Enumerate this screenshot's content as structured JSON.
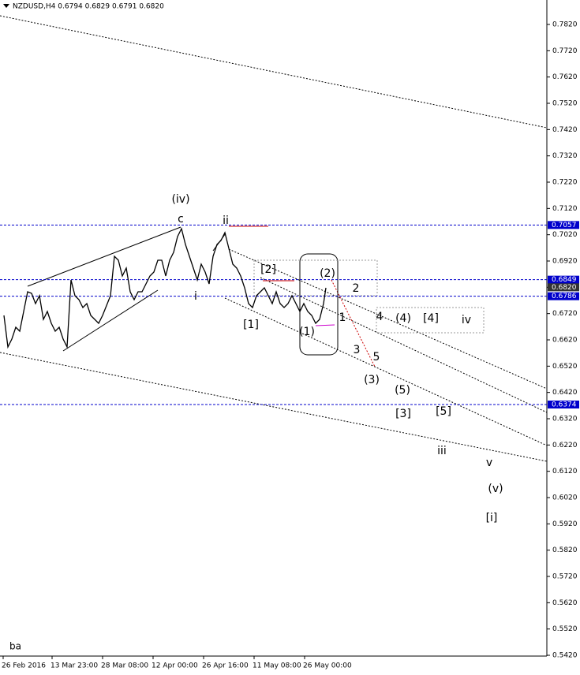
{
  "chart_data": {
    "type": "line",
    "title": "NZDUSD,H4 0.6794 0.6829 0.6791 0.6820",
    "footer": "ba",
    "xlim": [
      0,
      693
    ],
    "ylim": [
      0.5417,
      0.7913
    ],
    "xticks": [
      {
        "value": 4,
        "label": "26 Feb 2016"
      },
      {
        "value": 66,
        "label": "13 Mar 23:00"
      },
      {
        "value": 130,
        "label": "28 Mar 08:00"
      },
      {
        "value": 194,
        "label": "12 Apr 00:00"
      },
      {
        "value": 258,
        "label": "26 Apr 16:00"
      },
      {
        "value": 322,
        "label": "11 May 08:00"
      },
      {
        "value": 386,
        "label": "26 May 00:00"
      }
    ],
    "yticks": [
      {
        "value": 0.782,
        "label": "0.7820"
      },
      {
        "value": 0.772,
        "label": "0.7720"
      },
      {
        "value": 0.762,
        "label": "0.7620"
      },
      {
        "value": 0.752,
        "label": "0.7520"
      },
      {
        "value": 0.742,
        "label": "0.7420"
      },
      {
        "value": 0.732,
        "label": "0.7320"
      },
      {
        "value": 0.722,
        "label": "0.7220"
      },
      {
        "value": 0.712,
        "label": "0.7120"
      },
      {
        "value": 0.702,
        "label": "0.7020"
      },
      {
        "value": 0.692,
        "label": "0.6920"
      },
      {
        "value": 0.682,
        "label": "0.6820"
      },
      {
        "value": 0.672,
        "label": "0.6720"
      },
      {
        "value": 0.662,
        "label": "0.6620"
      },
      {
        "value": 0.652,
        "label": "0.6520"
      },
      {
        "value": 0.642,
        "label": "0.6420"
      },
      {
        "value": 0.632,
        "label": "0.6320"
      },
      {
        "value": 0.622,
        "label": "0.6220"
      },
      {
        "value": 0.612,
        "label": "0.6120"
      },
      {
        "value": 0.602,
        "label": "0.6020"
      },
      {
        "value": 0.592,
        "label": "0.5920"
      },
      {
        "value": 0.582,
        "label": "0.5820"
      },
      {
        "value": 0.572,
        "label": "0.5720"
      },
      {
        "value": 0.562,
        "label": "0.5620"
      },
      {
        "value": 0.552,
        "label": "0.5520"
      },
      {
        "value": 0.542,
        "label": "0.5420"
      }
    ],
    "levels": [
      0.7057,
      0.6849,
      {
        "value": 0.682,
        "label": "0.6820"
      },
      0.6786,
      0.6374
    ],
    "level_color": "#0000cc",
    "x": [
      5,
      10,
      15,
      20,
      25,
      30,
      35,
      40,
      45,
      50,
      55,
      60,
      65,
      70,
      75,
      80,
      85,
      90,
      95,
      100,
      105,
      110,
      115,
      120,
      125,
      130,
      140,
      145,
      150,
      155,
      160,
      165,
      170,
      175,
      180,
      185,
      190,
      195,
      200,
      205,
      210,
      215,
      220,
      225,
      230,
      235,
      240,
      245,
      250,
      255,
      260,
      265,
      270,
      275,
      280,
      285,
      290,
      295,
      300,
      305,
      310,
      315,
      320,
      325,
      330,
      335,
      340,
      345,
      350,
      355,
      360,
      365,
      370,
      375,
      380,
      385,
      390,
      395,
      400,
      405,
      410,
      413
    ],
    "series": [
      {
        "name": "NZDUSD",
        "color": "#000000",
        "values": [
          0.6713,
          0.6593,
          0.6623,
          0.6668,
          0.6653,
          0.6728,
          0.6803,
          0.6797,
          0.6758,
          0.6788,
          0.6698,
          0.6728,
          0.6683,
          0.6653,
          0.6668,
          0.6623,
          0.6593,
          0.6848,
          0.6788,
          0.6773,
          0.6743,
          0.6758,
          0.6713,
          0.6698,
          0.6683,
          0.6713,
          0.6788,
          0.6938,
          0.6923,
          0.6863,
          0.6893,
          0.6803,
          0.6773,
          0.6803,
          0.6803,
          0.6833,
          0.6863,
          0.6878,
          0.6923,
          0.6923,
          0.6863,
          0.6923,
          0.6953,
          0.7013,
          0.7043,
          0.6983,
          0.6938,
          0.6893,
          0.6848,
          0.6908,
          0.6878,
          0.6833,
          0.6938,
          0.6983,
          0.6998,
          0.7028,
          0.6968,
          0.6908,
          0.6893,
          0.6863,
          0.6818,
          0.6758,
          0.6743,
          0.6788,
          0.6803,
          0.6818,
          0.6788,
          0.6758,
          0.6803,
          0.6758,
          0.6743,
          0.6758,
          0.6788,
          0.6758,
          0.6728,
          0.6758,
          0.6728,
          0.6713,
          0.6683,
          0.6698,
          0.6758,
          0.6818
        ]
      }
    ],
    "annotations": [
      "(iv)",
      "c",
      "ii",
      "i",
      "[2]",
      "[1]",
      "(2)",
      "(1)",
      "2",
      "1",
      "3",
      "4",
      "5",
      "(4)",
      "[4]",
      "iv",
      "(3)",
      "(5)",
      "[3]",
      "[5]",
      "iii",
      "v",
      "(v)",
      "[i]"
    ]
  }
}
